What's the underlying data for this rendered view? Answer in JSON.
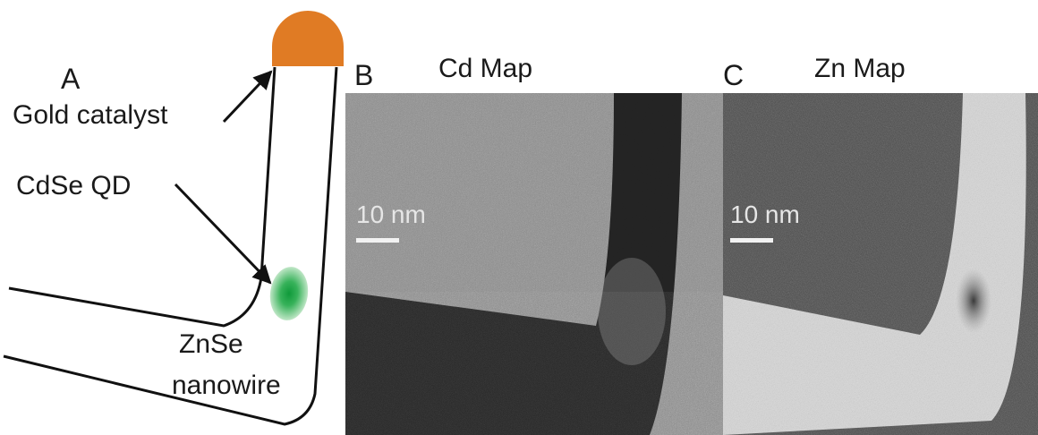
{
  "panel_a": {
    "letter": "A",
    "gold_label": "Gold catalyst",
    "qd_label": "CdSe QD",
    "nanowire_label_line1": "ZnSe",
    "nanowire_label_line2": "nanowire",
    "colors": {
      "gold": "#e07b24",
      "qd": "#2faa4a",
      "line": "#111111"
    }
  },
  "panel_b": {
    "letter": "B",
    "title": "Cd Map",
    "scale_label": "10 nm"
  },
  "panel_c": {
    "letter": "C",
    "title": "Zn Map",
    "scale_label": "10 nm"
  }
}
